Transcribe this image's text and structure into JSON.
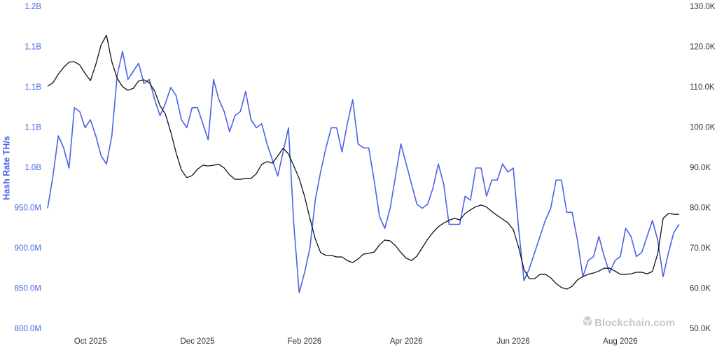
{
  "chart_data": {
    "type": "line",
    "ylabel": "Hash Rate TH/s",
    "watermark": "Blockchain.com",
    "categories": [
      null,
      null,
      null,
      null,
      null,
      null,
      null,
      null,
      "Oct 2025",
      null,
      null,
      null,
      null,
      null,
      null,
      null,
      null,
      null,
      null,
      null,
      null,
      null,
      null,
      null,
      null,
      null,
      null,
      null,
      "Dec 2025",
      null,
      null,
      null,
      null,
      null,
      null,
      null,
      null,
      null,
      null,
      null,
      null,
      null,
      null,
      null,
      null,
      null,
      null,
      null,
      "Feb 2026",
      null,
      null,
      null,
      null,
      null,
      null,
      null,
      null,
      null,
      null,
      null,
      null,
      null,
      null,
      null,
      null,
      null,
      null,
      "Apr 2026",
      null,
      null,
      null,
      null,
      null,
      null,
      null,
      null,
      null,
      null,
      null,
      null,
      null,
      null,
      null,
      null,
      null,
      null,
      null,
      "Jun 2026",
      null,
      null,
      null,
      null,
      null,
      null,
      null,
      null,
      null,
      null,
      null,
      null,
      null,
      null,
      null,
      null,
      null,
      null,
      null,
      "Aug 2026",
      null,
      null,
      null,
      null,
      null,
      null,
      null,
      null,
      null,
      null,
      null
    ],
    "series": [
      {
        "color": "#4a63e6",
        "axis": "y",
        "values": [
          950000000,
          990000000,
          1040000000,
          1025000000,
          1000000000,
          1075000000,
          1070000000,
          1050000000,
          1060000000,
          1040000000,
          1015000000,
          1005000000,
          1040000000,
          1115000000,
          1145000000,
          1110000000,
          1120000000,
          1130000000,
          1105000000,
          1110000000,
          1085000000,
          1065000000,
          1080000000,
          1100000000,
          1090000000,
          1060000000,
          1050000000,
          1075000000,
          1075000000,
          1055000000,
          1035000000,
          1110000000,
          1085000000,
          1070000000,
          1045000000,
          1065000000,
          1070000000,
          1095000000,
          1060000000,
          1050000000,
          1055000000,
          1030000000,
          1010000000,
          990000000,
          1020000000,
          1050000000,
          930000000,
          845000000,
          870000000,
          900000000,
          960000000,
          995000000,
          1025000000,
          1050000000,
          1050000000,
          1020000000,
          1055000000,
          1085000000,
          1030000000,
          1025000000,
          1025000000,
          985000000,
          940000000,
          925000000,
          950000000,
          990000000,
          1030000000,
          1005000000,
          980000000,
          955000000,
          950000000,
          955000000,
          975000000,
          1005000000,
          980000000,
          930000000,
          930000000,
          930000000,
          965000000,
          960000000,
          1000000000,
          1000000000,
          965000000,
          985000000,
          985000000,
          1005000000,
          995000000,
          1000000000,
          925000000,
          860000000,
          875000000,
          895000000,
          915000000,
          935000000,
          950000000,
          985000000,
          985000000,
          945000000,
          945000000,
          910000000,
          865000000,
          885000000,
          890000000,
          915000000,
          890000000,
          870000000,
          885000000,
          890000000,
          925000000,
          915000000,
          890000000,
          895000000,
          915000000,
          935000000,
          910000000,
          865000000,
          895000000,
          920000000,
          930000000
        ]
      },
      {
        "color": "#111111",
        "axis": "y2",
        "values": [
          110300,
          111200,
          113300,
          115000,
          116300,
          116400,
          115600,
          113500,
          111700,
          115700,
          120600,
          123000,
          116400,
          112300,
          110200,
          109300,
          109800,
          111600,
          111900,
          111200,
          109100,
          105500,
          103400,
          99000,
          93800,
          89500,
          87600,
          88100,
          89700,
          90700,
          90500,
          90700,
          90900,
          90000,
          88300,
          87200,
          87200,
          87400,
          87400,
          88600,
          90900,
          91600,
          91200,
          93000,
          94900,
          93500,
          90500,
          87400,
          83000,
          77500,
          72400,
          69000,
          68300,
          68300,
          67900,
          67900,
          67000,
          66500,
          67400,
          68600,
          68800,
          69100,
          70900,
          72100,
          71900,
          70700,
          69000,
          67600,
          67000,
          68100,
          70200,
          72300,
          74000,
          75400,
          76300,
          77000,
          77500,
          77100,
          78700,
          79600,
          80400,
          80800,
          80300,
          79200,
          78200,
          77300,
          76400,
          74700,
          70300,
          64800,
          62500,
          62500,
          63600,
          63600,
          62700,
          61300,
          60300,
          59900,
          60600,
          62200,
          63000,
          63600,
          63900,
          64400,
          65100,
          65100,
          64400,
          63600,
          63600,
          63700,
          64100,
          64100,
          63700,
          64300,
          68800,
          77500,
          78700,
          78500,
          78500
        ]
      }
    ],
    "ylim": [
      800000000,
      1200000000
    ],
    "yticks": [
      {
        "value": 800000000,
        "label": "800.0M"
      },
      {
        "value": 850000000,
        "label": "850.0M"
      },
      {
        "value": 900000000,
        "label": "900.0M"
      },
      {
        "value": 950000000,
        "label": "950.0M"
      },
      {
        "value": 1000000000,
        "label": "1.0B"
      },
      {
        "value": 1050000000,
        "label": "1.1B"
      },
      {
        "value": 1100000000,
        "label": "1.1B"
      },
      {
        "value": 1150000000,
        "label": "1.1B"
      },
      {
        "value": 1200000000,
        "label": "1.2B"
      }
    ],
    "y2lim": [
      50000,
      130000
    ],
    "y2ticks": [
      {
        "value": 50000,
        "label": "50.0K"
      },
      {
        "value": 60000,
        "label": "60.0K"
      },
      {
        "value": 70000,
        "label": "70.0K"
      },
      {
        "value": 80000,
        "label": "80.0K"
      },
      {
        "value": 90000,
        "label": "90.0K"
      },
      {
        "value": 100000,
        "label": "100.0K"
      },
      {
        "value": 110000,
        "label": "110.0K"
      },
      {
        "value": 120000,
        "label": "120.0K"
      },
      {
        "value": 130000,
        "label": "130.0K"
      }
    ],
    "grid": false
  }
}
